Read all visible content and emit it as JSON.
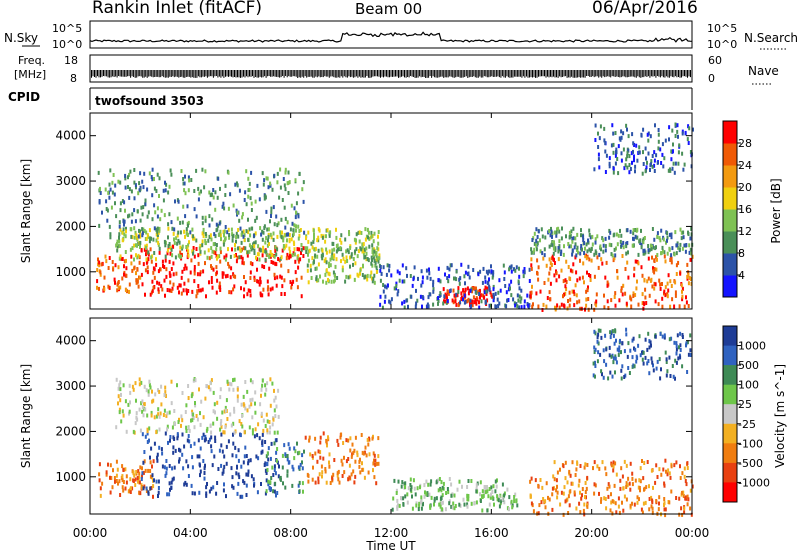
{
  "header": {
    "station": "Rankin Inlet (fitACF)",
    "beam": "Beam 00",
    "date": "06/Apr/2016"
  },
  "nsky_panel": {
    "left_label": "N.Sky",
    "right_label": "N.Search",
    "left_ticks": [
      "10^5",
      "10^0"
    ],
    "right_ticks": [
      "10^5",
      "10^0"
    ]
  },
  "freq_panel": {
    "left_label_line1": "Freq.",
    "left_label_line2": "[MHz]",
    "left_ticks": [
      "18",
      "8"
    ],
    "right_label": "Nave",
    "right_ticks": [
      "60",
      "0"
    ]
  },
  "cpid_panel": {
    "label": "CPID",
    "program": "twofsound 3503"
  },
  "x_axis": {
    "label": "Time UT",
    "ticks": [
      "00:00",
      "04:00",
      "08:00",
      "12:00",
      "16:00",
      "20:00",
      "00:00"
    ]
  },
  "chart_data": [
    {
      "type": "heatmap",
      "title": "Power",
      "ylabel": "Slant Range [km]",
      "yticks": [
        "1000",
        "2000",
        "3000",
        "4000"
      ],
      "ylim": [
        180,
        4500
      ],
      "colorbar_label": "Power [dB]",
      "colorbar_ticks": [
        "4",
        "8",
        "12",
        "16",
        "20",
        "24",
        "28"
      ],
      "colors": [
        "#1414ff",
        "#2c53a8",
        "#4a8f58",
        "#7fc254",
        "#f0d010",
        "#f39a10",
        "#f05a05",
        "#ff0000"
      ],
      "regions": [
        {
          "t": [
            0.2,
            2.0
          ],
          "r": [
            600,
            1400
          ],
          "level": 6
        },
        {
          "t": [
            2.0,
            8.5
          ],
          "r": [
            500,
            1600
          ],
          "level": 7
        },
        {
          "t": [
            1.0,
            11.5
          ],
          "r": [
            1300,
            2000
          ],
          "level": 3
        },
        {
          "t": [
            8.5,
            11.5
          ],
          "r": [
            800,
            1600
          ],
          "level": 3
        },
        {
          "t": [
            0.3,
            8.5
          ],
          "r": [
            1800,
            3300
          ],
          "level": 2
        },
        {
          "t": [
            14.0,
            16.0
          ],
          "r": [
            300,
            700
          ],
          "level": 7
        },
        {
          "t": [
            11.5,
            17.5
          ],
          "r": [
            250,
            1200
          ],
          "level": 1
        },
        {
          "t": [
            17.5,
            24.0
          ],
          "r": [
            200,
            1400
          ],
          "level": 6
        },
        {
          "t": [
            17.5,
            24.0
          ],
          "r": [
            1400,
            2000
          ],
          "level": 2
        },
        {
          "t": [
            20.0,
            24.0
          ],
          "r": [
            3200,
            4300
          ],
          "level": 1
        }
      ]
    },
    {
      "type": "heatmap",
      "title": "Velocity",
      "ylabel": "Slant Range [km]",
      "yticks": [
        "1000",
        "2000",
        "3000",
        "4000"
      ],
      "ylim": [
        180,
        4500
      ],
      "colorbar_label": "Velocity [m s^-1]",
      "colorbar_ticks": [
        "1000",
        "500",
        "100",
        "25",
        "-25",
        "-100",
        "-500",
        "-1000"
      ],
      "colors": [
        "#1e3c96",
        "#2f62c0",
        "#3e8a55",
        "#6ec64a",
        "#c8c8c8",
        "#f3b022",
        "#f07d10",
        "#e84010",
        "#ff0000"
      ],
      "regions": [
        {
          "t": [
            0.3,
            2.5
          ],
          "r": [
            600,
            1400
          ],
          "level": 6
        },
        {
          "t": [
            2.0,
            7.5
          ],
          "r": [
            600,
            2000
          ],
          "level": 0
        },
        {
          "t": [
            1.0,
            7.5
          ],
          "r": [
            2000,
            3200
          ],
          "level": 4
        },
        {
          "t": [
            7.0,
            8.5
          ],
          "r": [
            700,
            1800
          ],
          "level": 2
        },
        {
          "t": [
            8.5,
            11.5
          ],
          "r": [
            900,
            2000
          ],
          "level": 6
        },
        {
          "t": [
            12.0,
            17.0
          ],
          "r": [
            300,
            1000
          ],
          "level": 3
        },
        {
          "t": [
            17.5,
            24.0
          ],
          "r": [
            200,
            1400
          ],
          "level": 6
        },
        {
          "t": [
            20.0,
            24.0
          ],
          "r": [
            3200,
            4300
          ],
          "level": 1
        }
      ]
    }
  ],
  "style": {
    "trace_color": "#000000",
    "nave_color": "#000000"
  }
}
